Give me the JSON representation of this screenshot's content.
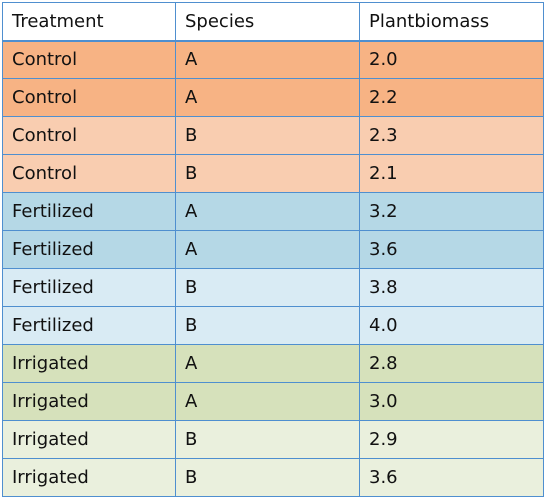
{
  "table": {
    "headers": [
      "Treatment",
      "Species",
      "Plantbiomass"
    ],
    "rows": [
      {
        "treatment": "Control",
        "species": "A",
        "biomass": "2.0"
      },
      {
        "treatment": "Control",
        "species": "A",
        "biomass": "2.2"
      },
      {
        "treatment": "Control",
        "species": "B",
        "biomass": "2.3"
      },
      {
        "treatment": "Control",
        "species": "B",
        "biomass": "2.1"
      },
      {
        "treatment": "Fertilized",
        "species": "A",
        "biomass": "3.2"
      },
      {
        "treatment": "Fertilized",
        "species": "A",
        "biomass": "3.6"
      },
      {
        "treatment": "Fertilized",
        "species": "B",
        "biomass": "3.8"
      },
      {
        "treatment": "Fertilized",
        "species": "B",
        "biomass": "4.0"
      },
      {
        "treatment": "Irrigated",
        "species": "A",
        "biomass": "2.8"
      },
      {
        "treatment": "Irrigated",
        "species": "A",
        "biomass": "3.0"
      },
      {
        "treatment": "Irrigated",
        "species": "B",
        "biomass": "2.9"
      },
      {
        "treatment": "Irrigated",
        "species": "B",
        "biomass": "3.6"
      }
    ]
  },
  "colors": {
    "border": "#4f8fcf",
    "control_a": "#f7b384",
    "control_b": "#f9cdb0",
    "fertilized_a": "#b5d8e6",
    "fertilized_b": "#d9ebf4",
    "irrigated_a": "#d6e1bb",
    "irrigated_b": "#eaf0dd"
  }
}
